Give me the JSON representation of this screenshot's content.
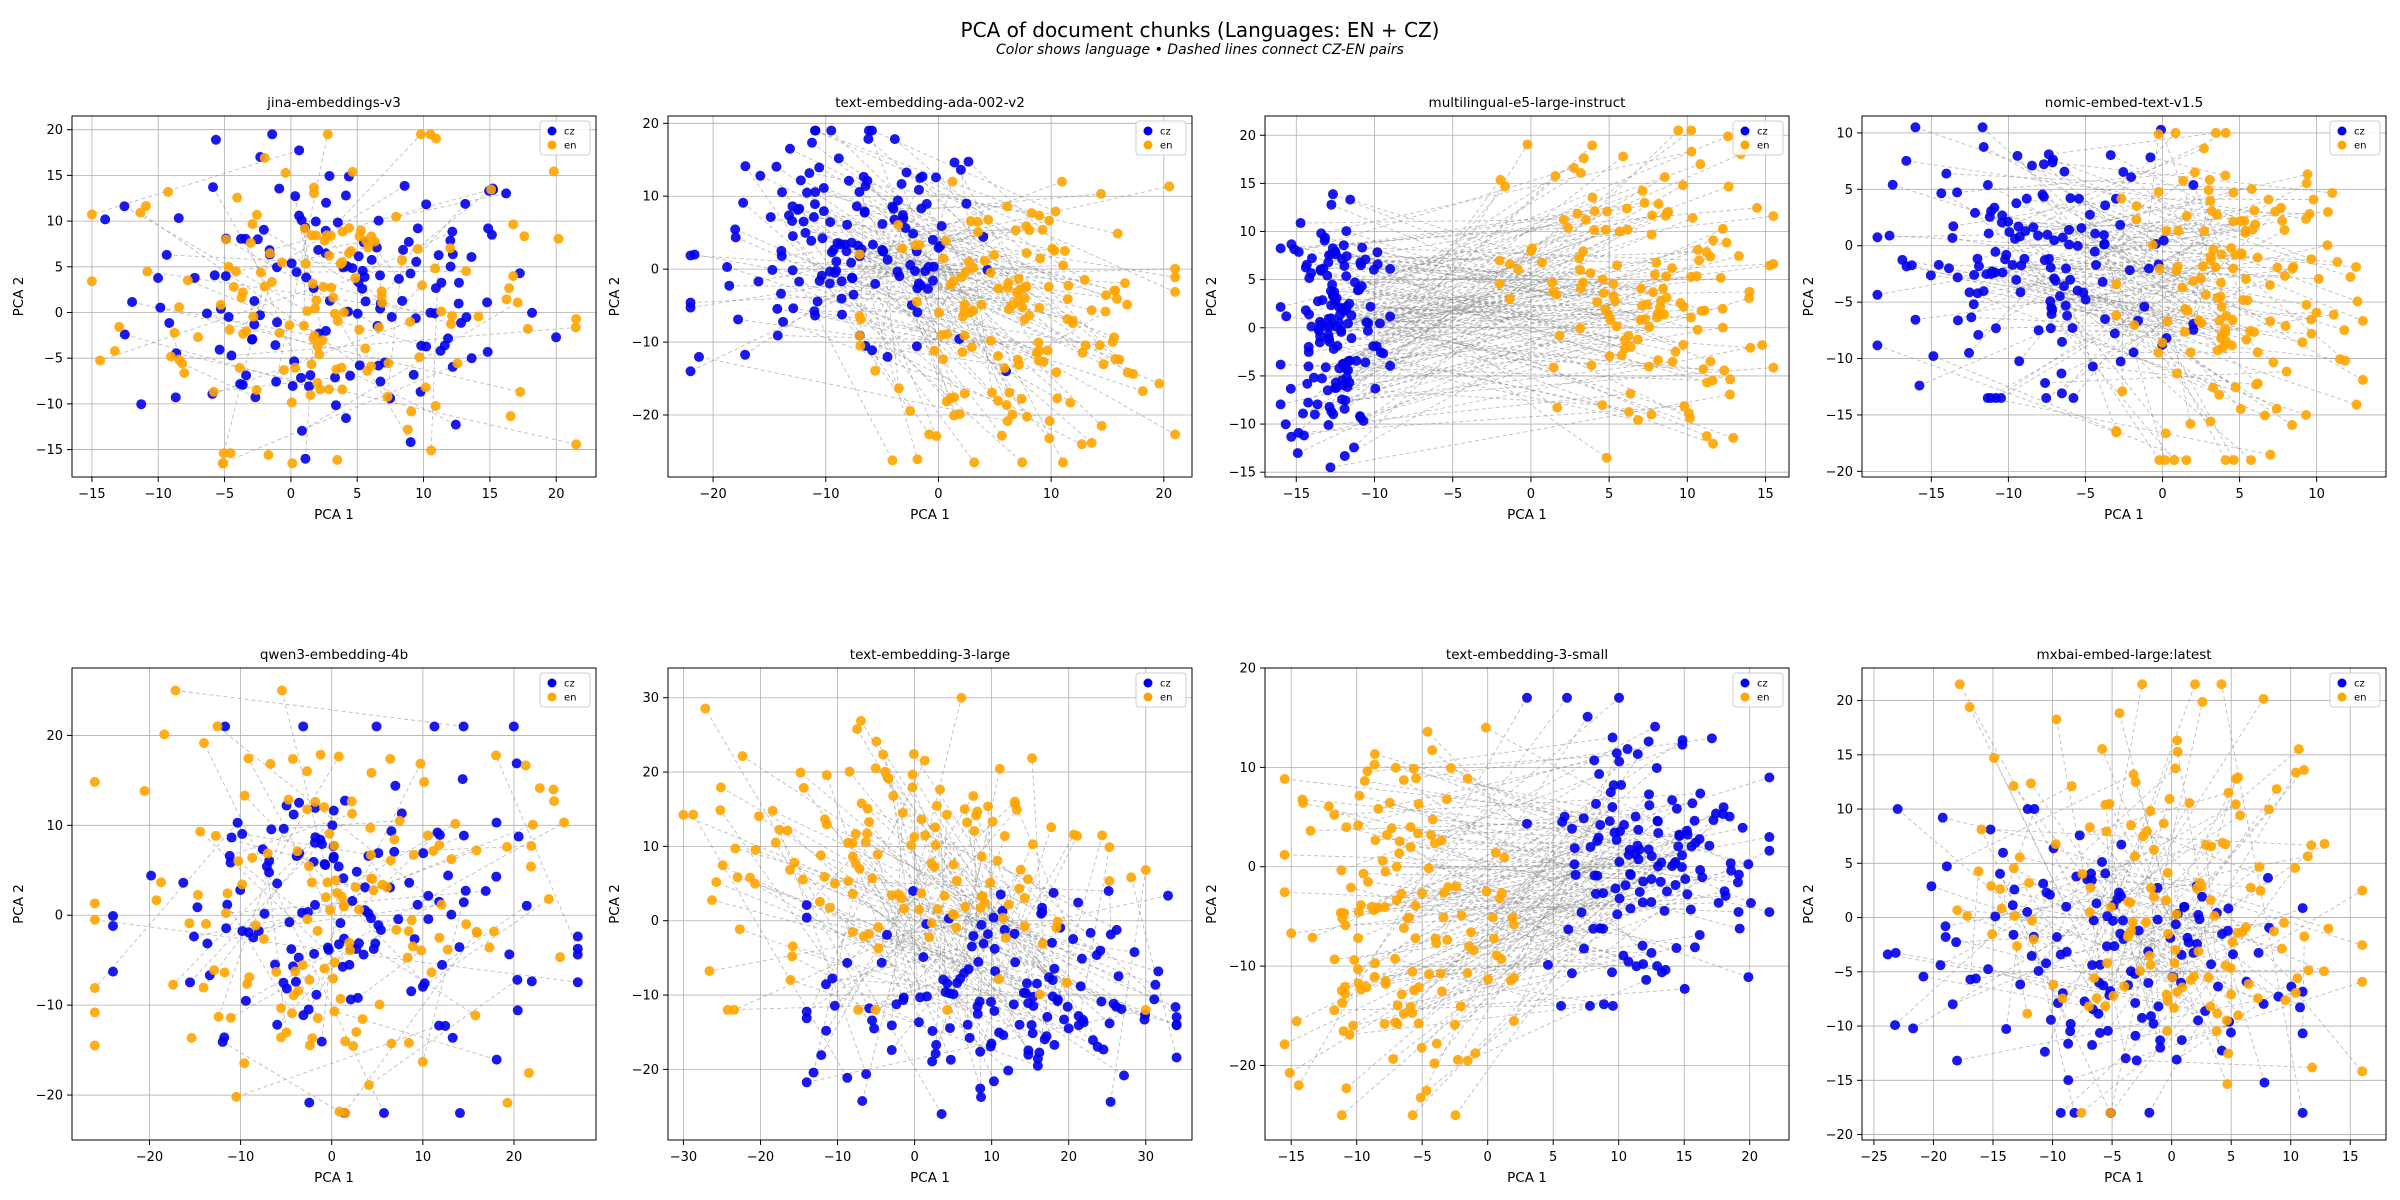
{
  "figure": {
    "title": "PCA of document chunks (Languages: EN + CZ)",
    "subtitle": "Color shows language • Dashed lines connect CZ-EN pairs"
  },
  "colors": {
    "cz": "#0000ee",
    "en": "#ffa500",
    "pair_line": "#8a8a8a",
    "grid": "#b0b0b0"
  },
  "chart_data": [
    {
      "type": "scatter",
      "title": "jina-embeddings-v3",
      "xlabel": "PCA 1",
      "ylabel": "PCA 2",
      "xlim": [
        -16.5,
        23
      ],
      "ylim": [
        -18,
        21.5
      ],
      "xticks": [
        -15,
        -10,
        -5,
        0,
        5,
        10,
        15,
        20
      ],
      "yticks": [
        -15,
        -10,
        -5,
        0,
        5,
        10,
        15,
        20
      ],
      "grid": true,
      "legend": {
        "position": "top-right",
        "entries": [
          "cz",
          "en"
        ]
      },
      "pattern": "mixed",
      "series": [
        {
          "name": "cz",
          "x_range": [
            -14,
            21
          ],
          "y_range": [
            -16,
            19.5
          ]
        },
        {
          "name": "en",
          "x_range": [
            -15,
            21.5
          ],
          "y_range": [
            -16.5,
            19.5
          ]
        }
      ]
    },
    {
      "type": "scatter",
      "title": "text-embedding-ada-002-v2",
      "xlabel": "PCA 1",
      "ylabel": "PCA 2",
      "xlim": [
        -24,
        22.5
      ],
      "ylim": [
        -28.5,
        21
      ],
      "xticks": [
        -20,
        -10,
        0,
        10,
        20
      ],
      "yticks": [
        -20,
        -10,
        0,
        10,
        20
      ],
      "grid": true,
      "legend": {
        "position": "top-right",
        "entries": [
          "cz",
          "en"
        ]
      },
      "pattern": "separated",
      "series": [
        {
          "name": "cz",
          "x_range": [
            -22,
            6
          ],
          "y_range": [
            -14,
            19
          ]
        },
        {
          "name": "en",
          "x_range": [
            -7,
            21
          ],
          "y_range": [
            -26.5,
            12
          ]
        }
      ]
    },
    {
      "type": "scatter",
      "title": "multilingual-e5-large-instruct",
      "xlabel": "PCA 1",
      "ylabel": "PCA 2",
      "xlim": [
        -17,
        16.5
      ],
      "ylim": [
        -15.5,
        22
      ],
      "xticks": [
        -15,
        -10,
        -5,
        0,
        5,
        10,
        15
      ],
      "yticks": [
        -15,
        -10,
        -5,
        0,
        5,
        10,
        15,
        20
      ],
      "grid": true,
      "legend": {
        "position": "top-right",
        "entries": [
          "cz",
          "en"
        ]
      },
      "pattern": "separated",
      "series": [
        {
          "name": "cz",
          "x_range": [
            -16,
            -9
          ],
          "y_range": [
            -14.5,
            15.5
          ]
        },
        {
          "name": "en",
          "x_range": [
            -2,
            15.5
          ],
          "y_range": [
            -13.5,
            20.5
          ]
        }
      ]
    },
    {
      "type": "scatter",
      "title": "nomic-embed-text-v1.5",
      "xlabel": "PCA 1",
      "ylabel": "PCA 2",
      "xlim": [
        -19.5,
        14.5
      ],
      "ylim": [
        -20.5,
        11.5
      ],
      "xticks": [
        -15,
        -10,
        -5,
        0,
        5,
        10
      ],
      "yticks": [
        -20,
        -15,
        -10,
        -5,
        0,
        5,
        10
      ],
      "grid": true,
      "legend": {
        "position": "top-right",
        "entries": [
          "cz",
          "en"
        ]
      },
      "pattern": "separated",
      "series": [
        {
          "name": "cz",
          "x_range": [
            -18.5,
            2
          ],
          "y_range": [
            -13.5,
            10.5
          ]
        },
        {
          "name": "en",
          "x_range": [
            -3,
            13
          ],
          "y_range": [
            -19,
            10
          ]
        }
      ]
    },
    {
      "type": "scatter",
      "title": "qwen3-embedding-4b",
      "xlabel": "PCA 1",
      "ylabel": "PCA 2",
      "xlim": [
        -28.5,
        29
      ],
      "ylim": [
        -25,
        27.5
      ],
      "xticks": [
        -20,
        -10,
        0,
        10,
        20
      ],
      "yticks": [
        -20,
        -10,
        0,
        10,
        20
      ],
      "grid": true,
      "legend": {
        "position": "top-right",
        "entries": [
          "cz",
          "en"
        ]
      },
      "pattern": "mixed",
      "series": [
        {
          "name": "cz",
          "x_range": [
            -24,
            27
          ],
          "y_range": [
            -22,
            21
          ]
        },
        {
          "name": "en",
          "x_range": [
            -26,
            26
          ],
          "y_range": [
            -22,
            25
          ]
        }
      ]
    },
    {
      "type": "scatter",
      "title": "text-embedding-3-large",
      "xlabel": "PCA 1",
      "ylabel": "PCA 2",
      "xlim": [
        -32,
        36
      ],
      "ylim": [
        -29.5,
        34
      ],
      "xticks": [
        -30,
        -20,
        -10,
        0,
        10,
        20,
        30
      ],
      "yticks": [
        -20,
        -10,
        0,
        10,
        20,
        30
      ],
      "grid": true,
      "legend": {
        "position": "top-right",
        "entries": [
          "cz",
          "en"
        ]
      },
      "pattern": "separated",
      "series": [
        {
          "name": "cz",
          "x_range": [
            -14,
            34
          ],
          "y_range": [
            -26,
            4
          ]
        },
        {
          "name": "en",
          "x_range": [
            -30,
            30
          ],
          "y_range": [
            -12,
            30
          ]
        }
      ]
    },
    {
      "type": "scatter",
      "title": "text-embedding-3-small",
      "xlabel": "PCA 1",
      "ylabel": "PCA 2",
      "xlim": [
        -17,
        23
      ],
      "ylim": [
        -27.5,
        20
      ],
      "xticks": [
        -15,
        -10,
        -5,
        0,
        5,
        10,
        15,
        20
      ],
      "yticks": [
        -20,
        -10,
        0,
        10,
        20
      ],
      "grid": true,
      "legend": {
        "position": "top-right",
        "entries": [
          "cz",
          "en"
        ]
      },
      "pattern": "separated",
      "series": [
        {
          "name": "cz",
          "x_range": [
            3,
            21.5
          ],
          "y_range": [
            -14,
            17
          ]
        },
        {
          "name": "en",
          "x_range": [
            -15.5,
            2
          ],
          "y_range": [
            -25,
            14
          ]
        }
      ]
    },
    {
      "type": "scatter",
      "title": "mxbai-embed-large:latest",
      "xlabel": "PCA 1",
      "ylabel": "PCA 2",
      "xlim": [
        -26,
        18
      ],
      "ylim": [
        -20.5,
        23
      ],
      "xticks": [
        -25,
        -20,
        -15,
        -10,
        -5,
        0,
        5,
        10,
        15
      ],
      "yticks": [
        -20,
        -15,
        -10,
        -5,
        0,
        5,
        10,
        15,
        20
      ],
      "grid": true,
      "legend": {
        "position": "top-right",
        "entries": [
          "cz",
          "en"
        ]
      },
      "pattern": "separated",
      "series": [
        {
          "name": "cz",
          "x_range": [
            -24,
            11
          ],
          "y_range": [
            -18,
            10
          ]
        },
        {
          "name": "en",
          "x_range": [
            -18,
            16
          ],
          "y_range": [
            -18,
            21.5
          ]
        }
      ]
    }
  ]
}
